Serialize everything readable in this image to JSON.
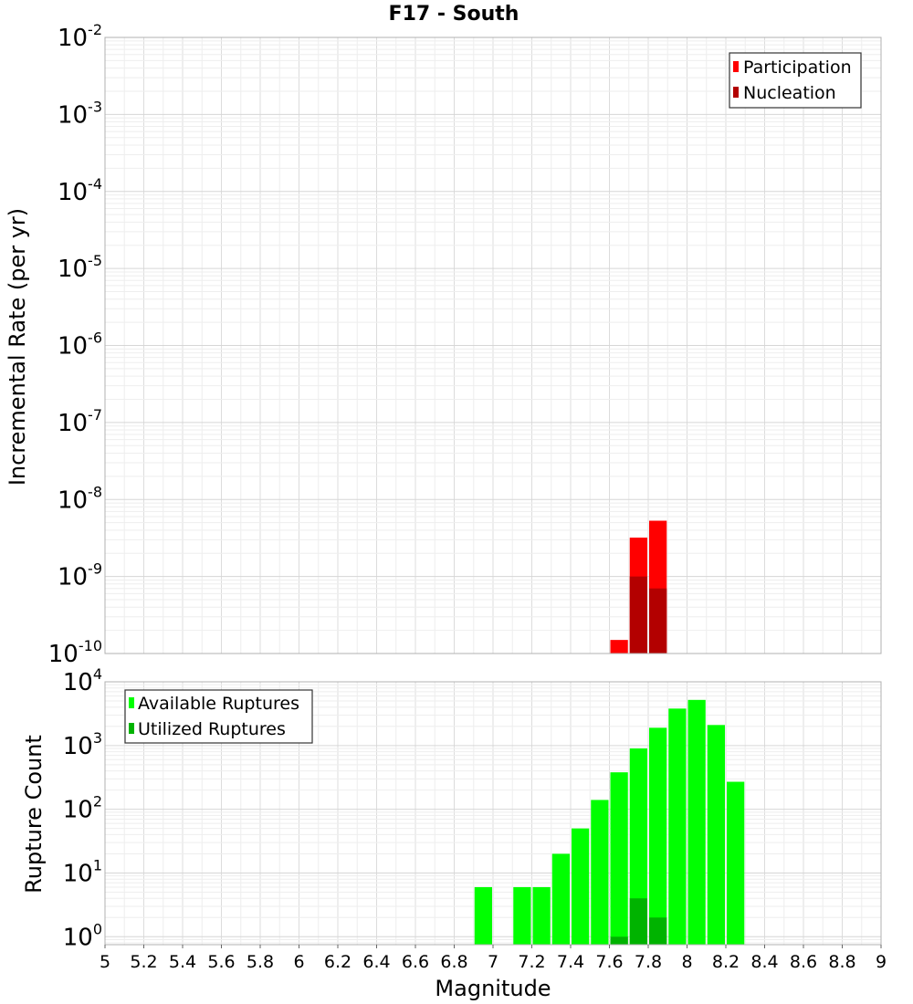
{
  "chart_data": [
    {
      "type": "bar",
      "title": "F17 - South",
      "xlabel": "",
      "ylabel": "Incremental Rate (per yr)",
      "yscale": "log",
      "ylim": [
        1e-10,
        0.01
      ],
      "xlim": [
        5,
        9
      ],
      "ytick_exponents": [
        "-10",
        "-9",
        "-8",
        "-7",
        "-6",
        "-5",
        "-4",
        "-3",
        "-2"
      ],
      "ytick_base": "10",
      "grid": true,
      "legend_position": "top-right",
      "bar_width": 0.1,
      "series": [
        {
          "name": "Participation",
          "color": "#ff0000",
          "x": [
            7.65,
            7.75,
            7.85
          ],
          "values": [
            1.5e-10,
            3.2e-09,
            5.3e-09
          ]
        },
        {
          "name": "Nucleation",
          "color": "#b30000",
          "x": [
            7.75,
            7.85
          ],
          "values": [
            1e-09,
            7e-10
          ]
        }
      ]
    },
    {
      "type": "bar",
      "xlabel": "Magnitude",
      "ylabel": "Rupture Count",
      "yscale": "log",
      "ylim": [
        0.75,
        10000
      ],
      "xlim": [
        5,
        9
      ],
      "xticks": [
        "5",
        "5.2",
        "5.4",
        "5.6",
        "5.8",
        "6",
        "6.2",
        "6.4",
        "6.6",
        "6.8",
        "7",
        "7.2",
        "7.4",
        "7.6",
        "7.8",
        "8",
        "8.2",
        "8.4",
        "8.6",
        "8.8",
        "9"
      ],
      "ytick_exponents": [
        "0",
        "1",
        "2",
        "3",
        "4"
      ],
      "ytick_base": "10",
      "grid": true,
      "legend_position": "top-left",
      "bar_width": 0.1,
      "series": [
        {
          "name": "Available Ruptures",
          "color": "#00ff00",
          "x": [
            6.95,
            7.15,
            7.25,
            7.35,
            7.45,
            7.55,
            7.65,
            7.75,
            7.85,
            7.95,
            8.05,
            8.15,
            8.25
          ],
          "values": [
            6,
            6,
            6,
            20,
            50,
            140,
            380,
            900,
            1900,
            3800,
            5200,
            2100,
            270
          ]
        },
        {
          "name": "Utilized Ruptures",
          "color": "#00b300",
          "x": [
            7.65,
            7.75,
            7.85
          ],
          "values": [
            1,
            4,
            2
          ]
        }
      ]
    }
  ]
}
